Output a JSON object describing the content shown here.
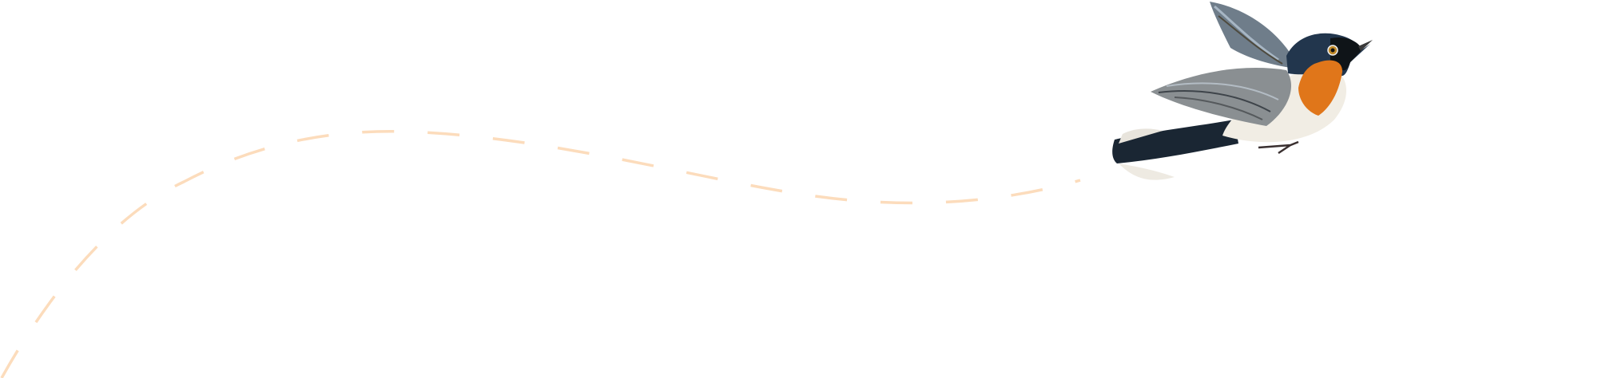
{
  "illustration": {
    "subject": "bird-flying-icon",
    "colors": {
      "background": "#ffffff",
      "flight_path": "#fcdcbc",
      "bird_throat": "#e0761a",
      "bird_head": "#1d2b3d",
      "bird_back": "#2a4660",
      "bird_wing": "#8a8f92",
      "bird_belly": "#f1ede4"
    }
  }
}
